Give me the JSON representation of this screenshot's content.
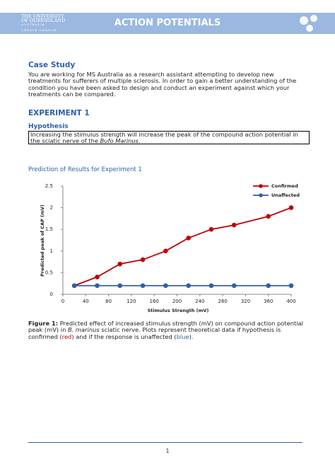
{
  "header": {
    "university_line1": "THE UNIVERSITY",
    "university_line2": "OF QUEENSLAND",
    "country": "AUSTRALIA",
    "tagline": "CREATE CHANGE",
    "title": "ACTION POTENTIALS"
  },
  "case_study": {
    "heading": "Case Study",
    "text": "You are working for MS Australia as a research assistant attempting to develop new treatments for sufferers of multiple sclerosis. In order to gain a better understanding of the condition you have been asked to design and conduct an experiment against which your treatments can be compared."
  },
  "experiment": {
    "heading": "EXPERIMENT 1",
    "hypothesis_heading": "Hypothesis",
    "hypothesis": [
      "Increasing the stimulus strength will increase the peak of the compound action potential in the sciatic nerve of the ",
      "Bufo Marinus",
      "."
    ],
    "prediction_heading": "Prediction of Results for Experiment 1"
  },
  "chart_data": {
    "type": "line",
    "xlabel": "Stimulus Strength (mV)",
    "ylabel": "Predicted peak of CAP (mV)",
    "x": [
      20,
      60,
      100,
      140,
      180,
      220,
      260,
      300,
      360,
      400
    ],
    "series": [
      {
        "name": "Confirmed",
        "color": "#c00000",
        "values": [
          0.2,
          0.4,
          0.7,
          0.8,
          1.0,
          1.3,
          1.5,
          1.6,
          1.8,
          2.0
        ]
      },
      {
        "name": "Unaffected",
        "color": "#2e5fa8",
        "values": [
          0.2,
          0.2,
          0.2,
          0.2,
          0.2,
          0.2,
          0.2,
          0.2,
          0.2,
          0.2
        ]
      }
    ],
    "xlim": [
      0,
      400
    ],
    "xticks": [
      0,
      40,
      80,
      120,
      160,
      200,
      240,
      280,
      320,
      360,
      400
    ],
    "ylim": [
      0,
      2.5
    ],
    "yticks": [
      0,
      0.5,
      1,
      1.5,
      2,
      2.5
    ],
    "legend": "upper right"
  },
  "figure_caption": {
    "label": "Figure 1:",
    "parts": [
      " Predicted effect of increased stimulus strength (mV) on compound action potential peak (mV) in ",
      "B. marinus",
      " sciatic nerve. Plots represent theoretical data if hypothesis is confirmed (",
      "red",
      ") and if the response is unaffected (",
      "blue",
      ")."
    ]
  },
  "page_number": "1"
}
